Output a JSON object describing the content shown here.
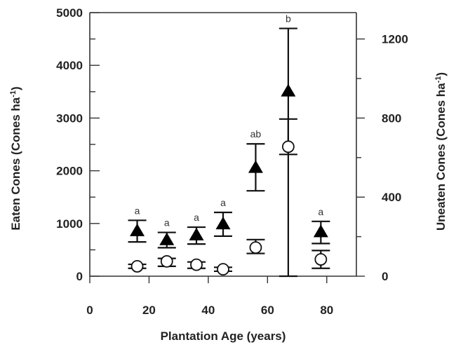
{
  "chart_data": {
    "type": "scatter",
    "title": "",
    "xlabel": "Plantation Age (years)",
    "ylabel_left": {
      "main": "Eaten Cones (Cones ha",
      "sup": "-1",
      "close": ")"
    },
    "ylabel_right": {
      "main": "Uneaten Cones  (Cones ha",
      "sup": "-1",
      "close": ")"
    },
    "xlim": [
      0,
      90
    ],
    "ylim_left": [
      0,
      5000
    ],
    "ylim_right": [
      0,
      1333.33
    ],
    "x_ticks": [
      0,
      20,
      40,
      60,
      80
    ],
    "x_ticks_labeled": [
      0,
      20,
      40,
      60,
      80
    ],
    "y_left_ticks": [
      0,
      1000,
      2000,
      3000,
      4000,
      5000
    ],
    "y_left_minor_ticks": [
      500,
      1500,
      2500,
      3500,
      4500
    ],
    "y_right_ticks": [
      0,
      400,
      800,
      1200
    ],
    "y_right_minor_ticks": [
      200,
      600,
      1000
    ],
    "series": [
      {
        "marker": "filled-triangle",
        "axis": "left",
        "points": [
          {
            "x": 16,
            "y": 850,
            "lower": 650,
            "upper": 1060,
            "label": "a"
          },
          {
            "x": 26,
            "y": 680,
            "lower": 540,
            "upper": 830,
            "label": "a"
          },
          {
            "x": 36,
            "y": 770,
            "lower": 610,
            "upper": 930,
            "label": "a"
          },
          {
            "x": 45,
            "y": 980,
            "lower": 760,
            "upper": 1210,
            "label": "a"
          },
          {
            "x": 56,
            "y": 2050,
            "lower": 1620,
            "upper": 2510,
            "label": "ab"
          },
          {
            "x": 67,
            "y": 3500,
            "lower": 2310,
            "upper": 4700,
            "label": "b"
          },
          {
            "x": 78,
            "y": 830,
            "lower": 620,
            "upper": 1040,
            "label": "a"
          }
        ]
      },
      {
        "marker": "open-circle",
        "axis": "right",
        "points": [
          {
            "x": 16,
            "y": 50,
            "lower": 40,
            "upper": 60
          },
          {
            "x": 26,
            "y": 75,
            "lower": 50,
            "upper": 90
          },
          {
            "x": 36,
            "y": 58,
            "lower": 40,
            "upper": 72
          },
          {
            "x": 45,
            "y": 35,
            "lower": 25,
            "upper": 45
          },
          {
            "x": 56,
            "y": 145,
            "lower": 115,
            "upper": 185
          },
          {
            "x": 67,
            "y": 655,
            "lower": 0,
            "upper": 795
          },
          {
            "x": 78,
            "y": 85,
            "lower": 40,
            "upper": 130
          }
        ]
      }
    ]
  }
}
